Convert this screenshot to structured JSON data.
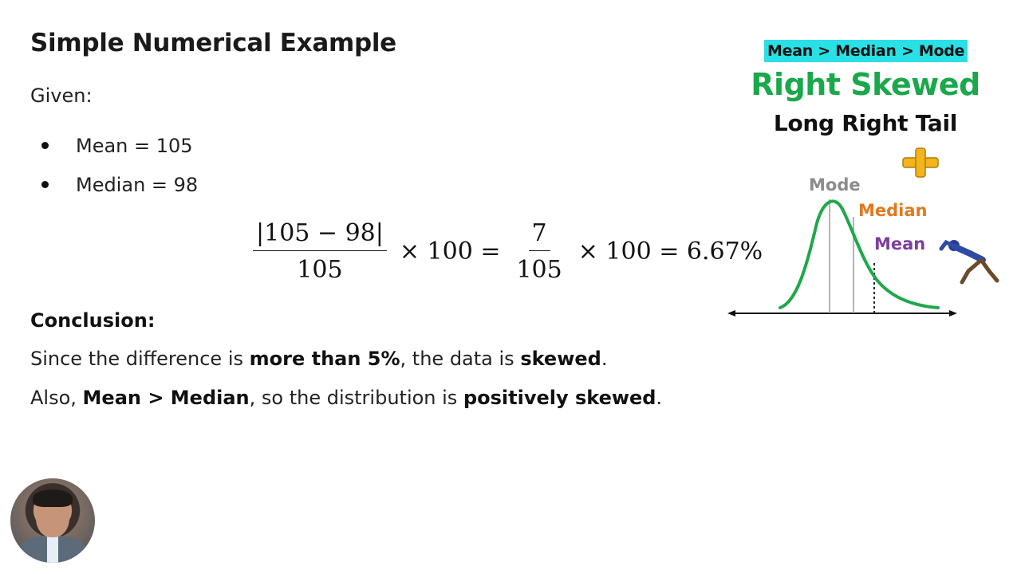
{
  "slide": {
    "title": "Simple Numerical Example",
    "given_label": "Given:",
    "given_items": [
      "Mean = 105",
      "Median = 98"
    ],
    "formula": {
      "frac1_num": "|105 − 98|",
      "frac1_den": "105",
      "times1": "× 100 =",
      "frac2_num": "7",
      "frac2_den": "105",
      "times2": "× 100 = 6.67%"
    },
    "conclusion_label": "Conclusion:",
    "line1": {
      "a": "Since the difference is ",
      "b": "more than 5%",
      "c": ", the data is ",
      "d": "skewed",
      "e": "."
    },
    "line2": {
      "a": "Also, ",
      "b": "Mean > Median",
      "c": ", so the distribution is ",
      "d": "positively skewed",
      "e": "."
    }
  },
  "illustration": {
    "badge": "Mean > Median > Mode",
    "heading": "Right Skewed",
    "subheading": "Long Right Tail",
    "mode_label": "Mode",
    "median_label": "Median",
    "mean_label": "Mean",
    "colors": {
      "badge_bg": "#29e0e6",
      "heading": "#1aa84b",
      "curve": "#1fa84a",
      "mode": "#8b8b8b",
      "median": "#e07a1f",
      "mean": "#7b3f9e",
      "plus": "#f2b51c"
    },
    "icons": [
      "plus-icon",
      "runner-figure"
    ]
  },
  "presenter": {
    "avatar": "presenter-webcam"
  }
}
